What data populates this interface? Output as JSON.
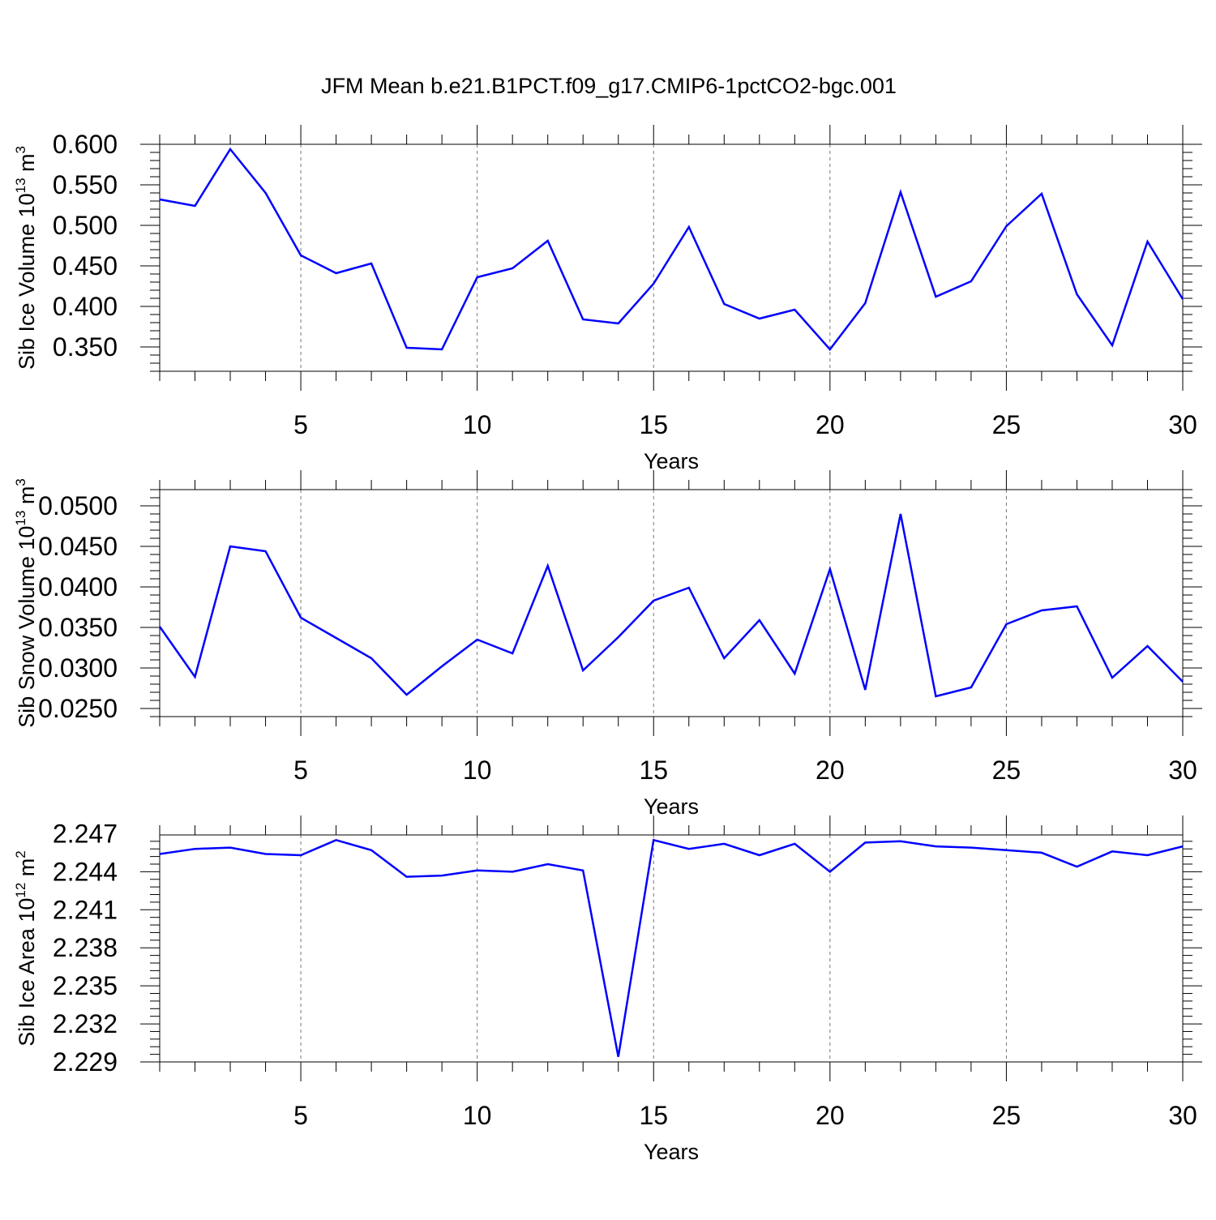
{
  "title": "JFM Mean b.e21.B1PCT.f09_g17.CMIP6-1pctCO2-bgc.001",
  "line_color": "#0000ff",
  "chart_data": [
    {
      "type": "line",
      "xlabel": "Years",
      "ylabel": {
        "base": "Sib Ice Volume 10",
        "exp1": "13",
        "unit": " m",
        "exp2": "3"
      },
      "xlim": [
        1,
        30
      ],
      "ylim": [
        0.32,
        0.6
      ],
      "xticks": [
        "5",
        "10",
        "15",
        "20",
        "25",
        "30"
      ],
      "yticks": [
        "0.350",
        "0.400",
        "0.450",
        "0.500",
        "0.550",
        "0.600"
      ],
      "x": [
        1,
        2,
        3,
        4,
        5,
        6,
        7,
        8,
        9,
        10,
        11,
        12,
        13,
        14,
        15,
        16,
        17,
        18,
        19,
        20,
        21,
        22,
        23,
        24,
        25,
        26,
        27,
        28,
        29,
        30
      ],
      "values": [
        0.532,
        0.524,
        0.594,
        0.54,
        0.463,
        0.441,
        0.453,
        0.349,
        0.347,
        0.436,
        0.447,
        0.481,
        0.384,
        0.379,
        0.428,
        0.498,
        0.403,
        0.385,
        0.396,
        0.347,
        0.404,
        0.541,
        0.412,
        0.431,
        0.499,
        0.539,
        0.415,
        0.352,
        0.48,
        0.409
      ]
    },
    {
      "type": "line",
      "xlabel": "Years",
      "ylabel": {
        "base": "Sib Snow Volume 10",
        "exp1": "13",
        "unit": " m",
        "exp2": "3"
      },
      "xlim": [
        1,
        30
      ],
      "ylim": [
        0.024,
        0.052
      ],
      "xticks": [
        "5",
        "10",
        "15",
        "20",
        "25",
        "30"
      ],
      "yticks": [
        "0.0250",
        "0.0300",
        "0.0350",
        "0.0400",
        "0.0450",
        "0.0500"
      ],
      "x": [
        1,
        2,
        3,
        4,
        5,
        6,
        7,
        8,
        9,
        10,
        11,
        12,
        13,
        14,
        15,
        16,
        17,
        18,
        19,
        20,
        21,
        22,
        23,
        24,
        25,
        26,
        27,
        28,
        29,
        30
      ],
      "values": [
        0.0351,
        0.0289,
        0.045,
        0.0444,
        0.0362,
        0.0337,
        0.0312,
        0.0267,
        0.0302,
        0.0335,
        0.0318,
        0.0426,
        0.0297,
        0.0338,
        0.0383,
        0.0399,
        0.0312,
        0.0359,
        0.0293,
        0.0422,
        0.0273,
        0.049,
        0.0265,
        0.0276,
        0.0354,
        0.0371,
        0.0376,
        0.0288,
        0.0327,
        0.0283
      ]
    },
    {
      "type": "line",
      "xlabel": "Years",
      "ylabel": {
        "base": "Sib Ice Area 10",
        "exp1": "12",
        "unit": " m",
        "exp2": "2"
      },
      "xlim": [
        1,
        30
      ],
      "ylim": [
        2.229,
        2.2469
      ],
      "xticks": [
        "5",
        "10",
        "15",
        "20",
        "25",
        "30"
      ],
      "yticks": [
        "2.229",
        "2.232",
        "2.235",
        "2.238",
        "2.241",
        "2.244",
        "2.247"
      ],
      "x": [
        1,
        2,
        3,
        4,
        5,
        6,
        7,
        8,
        9,
        10,
        11,
        12,
        13,
        14,
        15,
        16,
        17,
        18,
        19,
        20,
        21,
        22,
        23,
        24,
        25,
        26,
        27,
        28,
        29,
        30
      ],
      "values": [
        2.2454,
        2.2458,
        2.2459,
        2.2454,
        2.2453,
        2.2465,
        2.2457,
        2.2436,
        2.2437,
        2.2441,
        2.244,
        2.2446,
        2.2441,
        2.2294,
        2.2465,
        2.2458,
        2.2462,
        2.2453,
        2.2462,
        2.244,
        2.2463,
        2.2464,
        2.246,
        2.2459,
        2.2457,
        2.2455,
        2.2444,
        2.2456,
        2.2453,
        2.246
      ]
    }
  ]
}
